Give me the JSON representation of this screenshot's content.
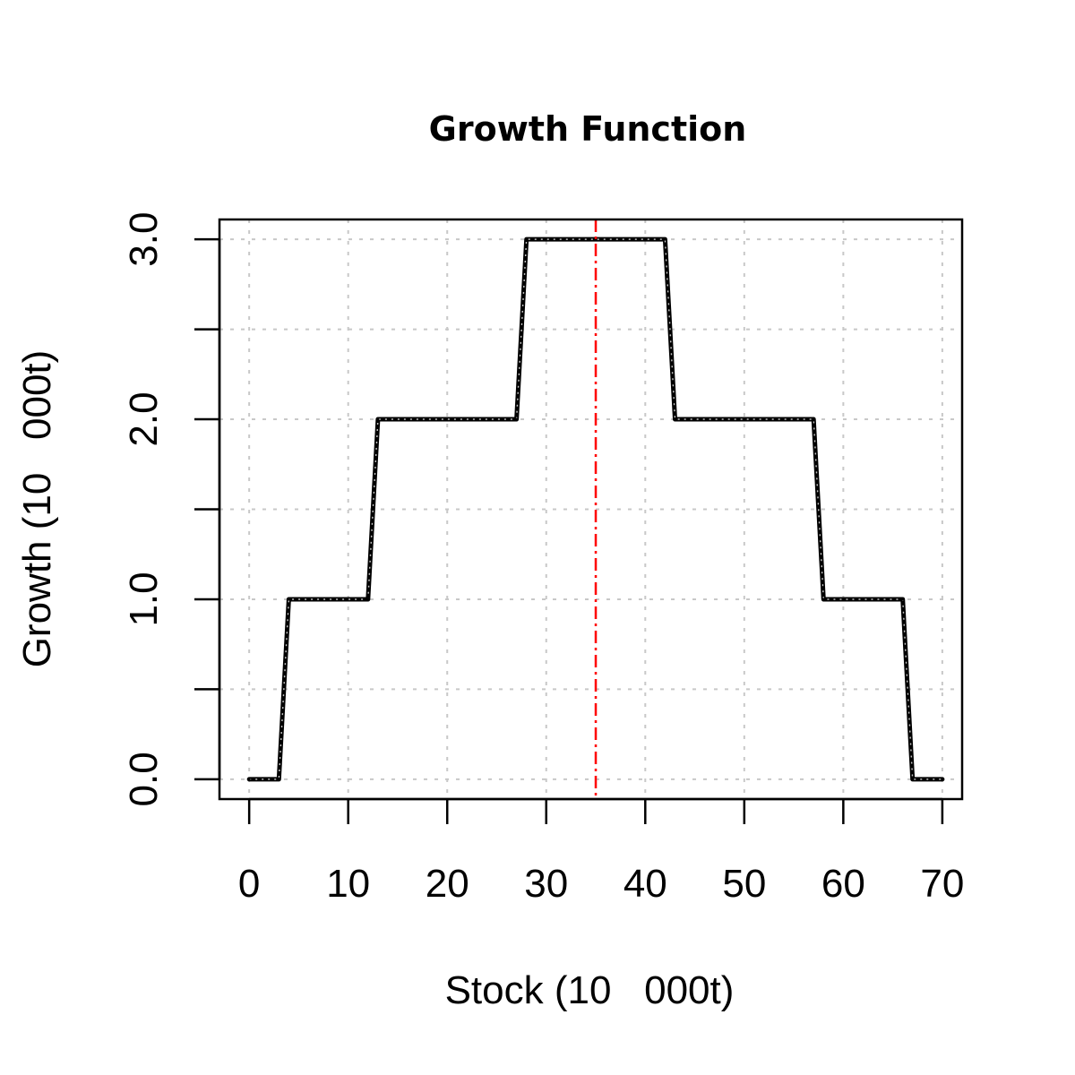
{
  "chart_data": {
    "type": "line",
    "title": "Growth Function",
    "xlabel": "Stock (10   000t)",
    "ylabel": "Growth (10   000t)",
    "xlim": [
      -3,
      72
    ],
    "ylim": [
      -0.11,
      3.11
    ],
    "x_ticks": [
      0,
      10,
      20,
      30,
      40,
      50,
      60,
      70
    ],
    "x_tick_labels": [
      "0",
      "10",
      "20",
      "30",
      "40",
      "50",
      "60",
      "70"
    ],
    "y_ticks": [
      0,
      0.5,
      1.0,
      1.5,
      2.0,
      2.5,
      3.0
    ],
    "y_tick_labels": [
      "0.0",
      "",
      "1.0",
      "",
      "2.0",
      "",
      "3.0"
    ],
    "grid": true,
    "series": [
      {
        "color": "#000000",
        "style": "solid",
        "x": [
          0,
          3,
          4,
          12,
          13,
          27,
          28,
          42,
          43,
          57,
          58,
          66,
          67,
          70
        ],
        "y": [
          0,
          0,
          1,
          1,
          2,
          2,
          3,
          3,
          2,
          2,
          1,
          1,
          0,
          0
        ]
      }
    ],
    "vertical_lines": [
      {
        "x": 35,
        "color": "#ff0000",
        "style": "dashdot"
      }
    ]
  }
}
